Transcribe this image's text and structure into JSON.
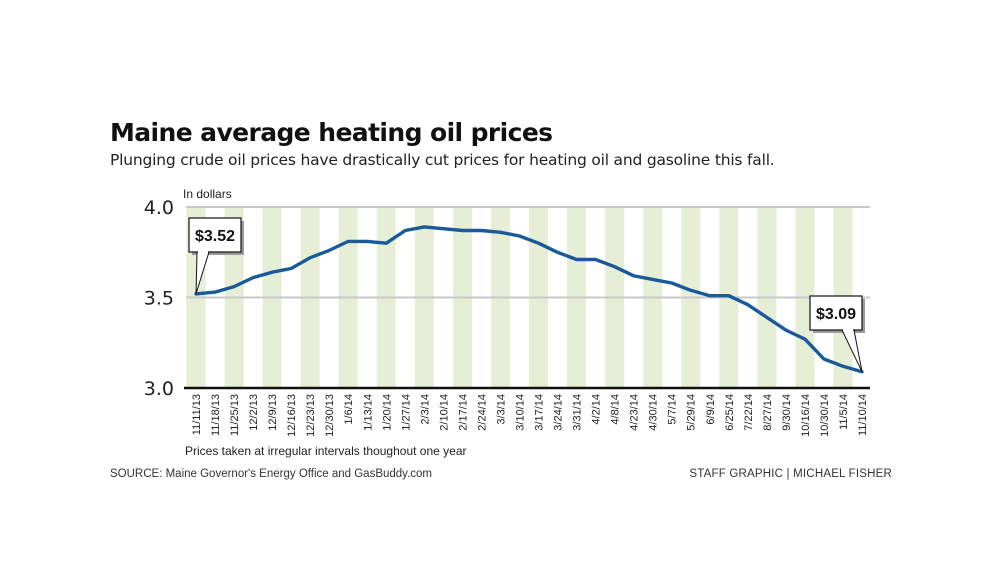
{
  "header": {
    "title": "Maine average heating oil prices",
    "subtitle": "Plunging crude oil prices have drastically cut prices for heating oil and gasoline this fall."
  },
  "footer": {
    "source": "SOURCE: Maine Governor's Energy Office and GasBuddy.com",
    "credit": "STAFF GRAPHIC | MICHAEL FISHER"
  },
  "colors": {
    "line": "#1a5a9a",
    "stripe": "#e6eed5",
    "gridline": "#c8c8c8",
    "axis": "#111111"
  },
  "chart_data": {
    "type": "line",
    "title": "Maine average heating oil prices",
    "subtitle": "Plunging crude oil prices have drastically cut prices for heating oil and gasoline this fall.",
    "ylabel": "In dollars",
    "xlabel": "Prices taken at irregular intervals thoughout one year",
    "ylim": [
      3.0,
      4.0
    ],
    "yticks": [
      3.0,
      3.5,
      4.0
    ],
    "ytick_labels": [
      "3.0",
      "3.5",
      "4.0"
    ],
    "grid": true,
    "x": [
      "11/11/13",
      "11/18/13",
      "11/25/13",
      "12/2/13",
      "12/9/13",
      "12/16/13",
      "12/23/13",
      "12/30/13",
      "1/6/14",
      "1/13/14",
      "1/20/14",
      "1/27/14",
      "2/3/14",
      "2/10/14",
      "2/17/14",
      "2/24/14",
      "3/3/14",
      "3/10/14",
      "3/17/14",
      "3/24/14",
      "3/31/14",
      "4/2/14",
      "4/8/14",
      "4/23/14",
      "4/30/14",
      "5/7/14",
      "5/29/14",
      "6/9/14",
      "6/25/14",
      "7/22/14",
      "8/27/14",
      "9/30/14",
      "10/16/14",
      "10/30/14",
      "11/5/14",
      "11/10/14"
    ],
    "series": [
      {
        "name": "Average heating oil price",
        "values": [
          3.52,
          3.53,
          3.56,
          3.61,
          3.64,
          3.66,
          3.72,
          3.76,
          3.81,
          3.81,
          3.8,
          3.87,
          3.89,
          3.88,
          3.87,
          3.87,
          3.86,
          3.84,
          3.8,
          3.75,
          3.71,
          3.71,
          3.67,
          3.62,
          3.6,
          3.58,
          3.54,
          3.51,
          3.51,
          3.46,
          3.39,
          3.32,
          3.27,
          3.16,
          3.12,
          3.09
        ]
      }
    ],
    "annotations": [
      {
        "label": "$3.52",
        "x": "11/11/13",
        "value": 3.52
      },
      {
        "label": "$3.09",
        "x": "11/10/14",
        "value": 3.09
      }
    ]
  }
}
